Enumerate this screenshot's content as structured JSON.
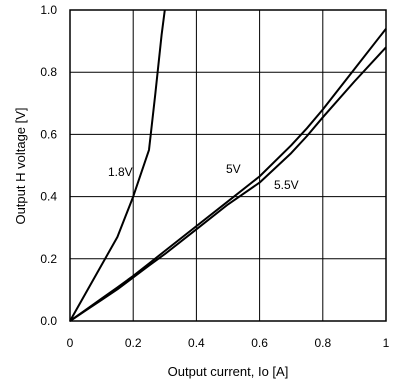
{
  "chart_data": {
    "type": "line",
    "title": "",
    "xlabel": "Output current, Io [A]",
    "ylabel": "Output H voltage [V]",
    "xlim": [
      0,
      1
    ],
    "ylim": [
      0,
      1
    ],
    "x_ticks": [
      "0",
      "0.2",
      "0.4",
      "0.6",
      "0.8",
      "1"
    ],
    "y_ticks": [
      "0.0",
      "0.2",
      "0.4",
      "0.6",
      "0.8",
      "1.0"
    ],
    "grid": true,
    "legend": "none",
    "series": [
      {
        "name": "1.8V",
        "x": [
          0,
          0.05,
          0.15,
          0.2,
          0.25,
          0.27,
          0.29,
          0.3
        ],
        "y": [
          0,
          0.09,
          0.27,
          0.4,
          0.55,
          0.73,
          0.92,
          1.0
        ]
      },
      {
        "name": "5V",
        "x": [
          0,
          0.05,
          0.1,
          0.15,
          0.2,
          0.25,
          0.3,
          0.4,
          0.5,
          0.6,
          0.7,
          0.75,
          0.8,
          0.9,
          1.0
        ],
        "y": [
          0,
          0.036,
          0.072,
          0.108,
          0.145,
          0.185,
          0.225,
          0.305,
          0.385,
          0.465,
          0.565,
          0.62,
          0.68,
          0.81,
          0.94
        ]
      },
      {
        "name": "5.5V",
        "x": [
          0,
          0.05,
          0.1,
          0.15,
          0.2,
          0.25,
          0.3,
          0.4,
          0.5,
          0.6,
          0.7,
          0.75,
          0.8,
          0.9,
          1.0
        ],
        "y": [
          0,
          0.034,
          0.068,
          0.102,
          0.14,
          0.178,
          0.215,
          0.295,
          0.375,
          0.445,
          0.54,
          0.595,
          0.655,
          0.77,
          0.88
        ]
      }
    ]
  }
}
